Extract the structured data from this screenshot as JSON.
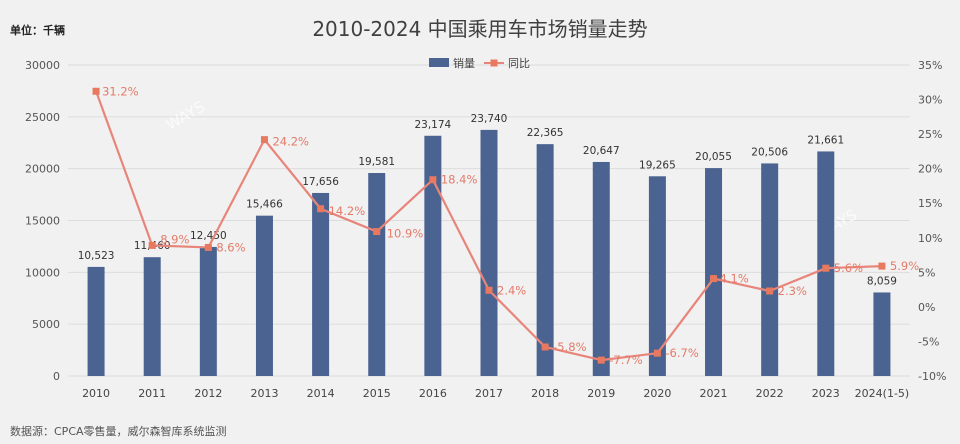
{
  "header": {
    "title": "2010-2024 中国乘用车市场销量走势",
    "unit": "单位：千辆"
  },
  "footer": {
    "source": "数据源：CPCA零售量，威尔森智库系统监测"
  },
  "watermarks": [
    "WAYS",
    "WAYS"
  ],
  "colors": {
    "bar": "#4b6390",
    "line": "#e8857a",
    "marker": "#e8795e",
    "grid": "#dcdcdc",
    "background": "#f1f1f1"
  },
  "chart_data": {
    "type": "bar",
    "title": "2010-2024 中国乘用车市场销量走势",
    "categories": [
      "2010",
      "2011",
      "2012",
      "2013",
      "2014",
      "2015",
      "2016",
      "2017",
      "2018",
      "2019",
      "2020",
      "2021",
      "2022",
      "2023",
      "2024(1-5)"
    ],
    "series": [
      {
        "name": "销量",
        "type": "bar",
        "axis": "left",
        "values": [
          10523,
          11460,
          12450,
          15466,
          17656,
          19581,
          23174,
          23740,
          22365,
          20647,
          19265,
          20055,
          20506,
          21661,
          8059
        ],
        "labels": [
          "10,523",
          "11,460",
          "12,450",
          "15,466",
          "17,656",
          "19,581",
          "23,174",
          "23,740",
          "22,365",
          "20,647",
          "19,265",
          "20,055",
          "20,506",
          "21,661",
          "8,059"
        ]
      },
      {
        "name": "同比",
        "type": "line",
        "axis": "right",
        "values": [
          31.2,
          8.9,
          8.6,
          24.2,
          14.2,
          10.9,
          18.4,
          2.4,
          -5.8,
          -7.7,
          -6.7,
          4.1,
          2.3,
          5.6,
          5.9
        ],
        "labels": [
          "31.2%",
          "8.9%",
          "8.6%",
          "24.2%",
          "14.2%",
          "10.9%",
          "18.4%",
          "2.4%",
          "-5.8%",
          "-7.7%",
          "-6.7%",
          "4.1%",
          "2.3%",
          "5.6%",
          "5.9%"
        ]
      }
    ],
    "y_left": {
      "min": 0,
      "max": 30000,
      "ticks": [
        "0",
        "5000",
        "10000",
        "15000",
        "20000",
        "25000",
        "30000"
      ]
    },
    "y_right": {
      "min": -10,
      "max": 35,
      "ticks": [
        "-10%",
        "-5%",
        "0%",
        "5%",
        "10%",
        "15%",
        "20%",
        "25%",
        "30%",
        "35%"
      ]
    },
    "grid": true,
    "legend": "top-center"
  }
}
